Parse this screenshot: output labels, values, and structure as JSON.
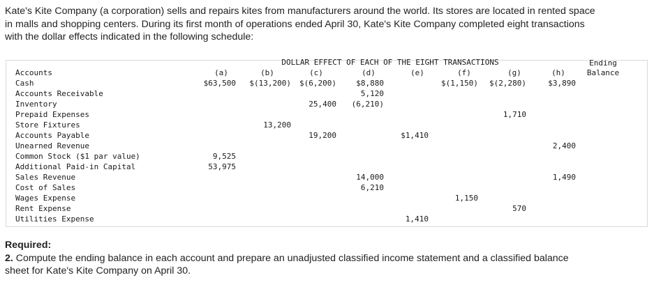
{
  "intro": {
    "line1": "Kate's Kite Company (a corporation) sells and repairs kites from manufacturers around the world. Its stores are located in rented space",
    "line2": "in malls and shopping centers. During its first month of operations ended April 30, Kate's Kite Company completed eight transactions",
    "line3": "with the dollar effects indicated in the following schedule:"
  },
  "table": {
    "super_header": "DOLLAR EFFECT OF EACH OF THE EIGHT TRANSACTIONS",
    "accounts_header": "Accounts",
    "ending_header_1": "Ending",
    "ending_header_2": "Balance",
    "columns": [
      "(a)",
      "(b)",
      "(c)",
      "(d)",
      "(e)",
      "(f)",
      "(g)",
      "(h)"
    ],
    "rows": [
      {
        "account": "Cash",
        "values": [
          "$63,500",
          "$(13,200)",
          "$(6,200)",
          "$8,880",
          "",
          "$(1,150)",
          "$(2,280)",
          "$3,890"
        ]
      },
      {
        "account": "Accounts Receivable",
        "values": [
          "",
          "",
          "",
          "5,120",
          "",
          "",
          "",
          ""
        ]
      },
      {
        "account": "Inventory",
        "values": [
          "",
          "",
          "25,400",
          "(6,210)",
          "",
          "",
          "",
          ""
        ]
      },
      {
        "account": "Prepaid Expenses",
        "values": [
          "",
          "",
          "",
          "",
          "",
          "",
          "1,710",
          ""
        ]
      },
      {
        "account": "Store Fixtures",
        "values": [
          "",
          "13,200",
          "",
          "",
          "",
          "",
          "",
          ""
        ]
      },
      {
        "account": "Accounts Payable",
        "values": [
          "",
          "",
          "19,200",
          "",
          "$1,410",
          "",
          "",
          ""
        ]
      },
      {
        "account": "Unearned Revenue",
        "values": [
          "",
          "",
          "",
          "",
          "",
          "",
          "",
          "2,400"
        ]
      },
      {
        "account": "Common Stock ($1 par value)",
        "values": [
          "9,525",
          "",
          "",
          "",
          "",
          "",
          "",
          ""
        ]
      },
      {
        "account": "Additional Paid-in Capital",
        "values": [
          "53,975",
          "",
          "",
          "",
          "",
          "",
          "",
          ""
        ]
      },
      {
        "account": "Sales Revenue",
        "values": [
          "",
          "",
          "",
          "14,000",
          "",
          "",
          "",
          "1,490"
        ]
      },
      {
        "account": "Cost of Sales",
        "values": [
          "",
          "",
          "",
          "6,210",
          "",
          "",
          "",
          ""
        ]
      },
      {
        "account": "Wages Expense",
        "values": [
          "",
          "",
          "",
          "",
          "",
          "1,150",
          "",
          ""
        ]
      },
      {
        "account": "Rent Expense",
        "values": [
          "",
          "",
          "",
          "",
          "",
          "",
          "570",
          ""
        ]
      },
      {
        "account": "Utilities Expense",
        "values": [
          "",
          "",
          "",
          "",
          "1,410",
          "",
          "",
          ""
        ]
      }
    ]
  },
  "required": {
    "heading": "Required:",
    "number": "2.",
    "text_line1": " Compute the ending balance in each account and prepare an unadjusted classified income statement and a classified balance",
    "text_line2": "sheet for Kate's Kite Company on April 30."
  }
}
